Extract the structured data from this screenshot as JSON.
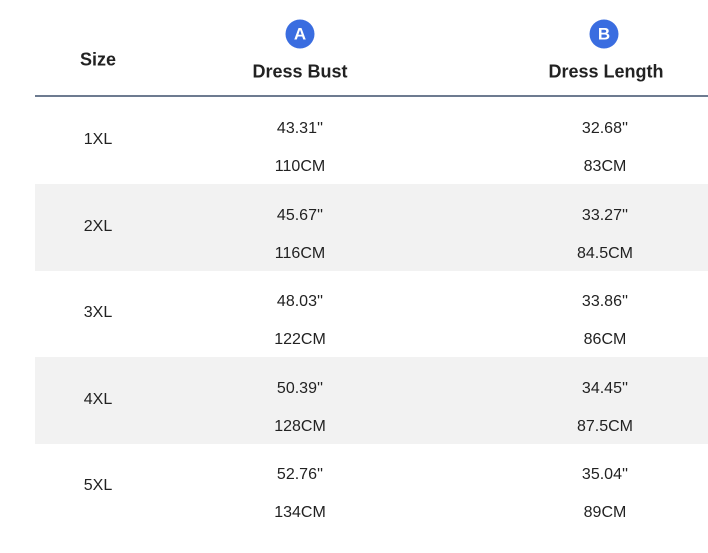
{
  "header": {
    "size": "Size",
    "col_a": {
      "badge": "A",
      "label": "Dress Bust"
    },
    "col_b": {
      "badge": "B",
      "label": "Dress Length"
    }
  },
  "colors": {
    "badge": "#3a6de0",
    "row_alt": "#f2f2f2",
    "rule": "#6d7b90"
  },
  "rows": [
    {
      "size": "1XL",
      "bust_in": "43.31''",
      "bust_cm": "110CM",
      "length_in": "32.68''",
      "length_cm": "83CM"
    },
    {
      "size": "2XL",
      "bust_in": "45.67''",
      "bust_cm": "116CM",
      "length_in": "33.27''",
      "length_cm": "84.5CM"
    },
    {
      "size": "3XL",
      "bust_in": "48.03''",
      "bust_cm": "122CM",
      "length_in": "33.86''",
      "length_cm": "86CM"
    },
    {
      "size": "4XL",
      "bust_in": "50.39''",
      "bust_cm": "128CM",
      "length_in": "34.45''",
      "length_cm": "87.5CM"
    },
    {
      "size": "5XL",
      "bust_in": "52.76''",
      "bust_cm": "134CM",
      "length_in": "35.04''",
      "length_cm": "89CM"
    }
  ]
}
